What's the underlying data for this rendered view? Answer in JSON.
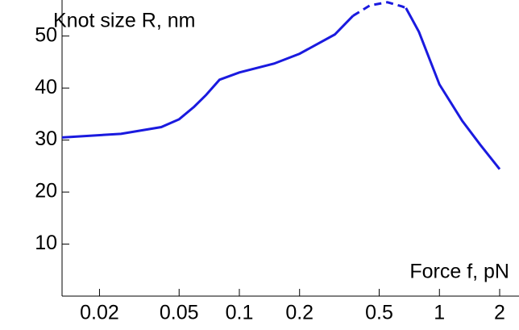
{
  "chart_data": {
    "type": "line",
    "y_label": "Knot size R, nm",
    "x_label": "Force f, pN",
    "log_x": true,
    "x": [
      0.013,
      0.0256,
      0.0407,
      0.05,
      0.0594,
      0.0683,
      0.0796,
      0.1,
      0.149,
      0.2,
      0.3,
      0.37,
      0.45,
      0.55,
      0.65,
      0.68,
      0.79,
      1,
      1.3,
      1.6,
      2
    ],
    "series": [
      {
        "color": "#1a1adf",
        "dash": false,
        "values": [
          30.5,
          31.2,
          32.5,
          34,
          36.4,
          38.7,
          41.6,
          43,
          44.7,
          46.6,
          50.3,
          53.9,
          null,
          null,
          null,
          55.4,
          50.8,
          40.7,
          33.7,
          29.1,
          24.4
        ]
      },
      {
        "color": "#1a1adf",
        "dash": true,
        "values": [
          null,
          null,
          null,
          null,
          null,
          null,
          null,
          null,
          null,
          null,
          null,
          53.9,
          55.9,
          56.5,
          55.7,
          55.4,
          null,
          null,
          null,
          null,
          null
        ]
      }
    ],
    "xlim": [
      0.013,
      2
    ],
    "xticks": [
      0.02,
      0.05,
      0.1,
      0.2,
      0.5,
      1,
      2
    ],
    "ylim": [
      0,
      56
    ],
    "yticks": [
      10,
      20,
      30,
      40,
      50
    ]
  }
}
